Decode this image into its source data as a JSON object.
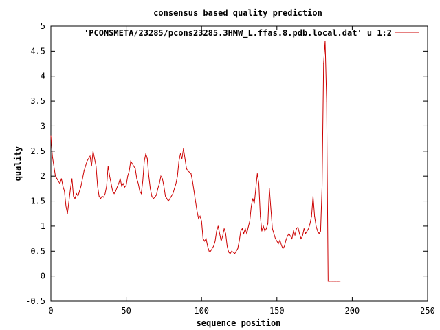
{
  "chart_data": {
    "type": "line",
    "title": "consensus based quality prediction",
    "xlabel": "sequence position",
    "ylabel": "quality",
    "xlim": [
      0,
      250
    ],
    "ylim": [
      -0.5,
      5
    ],
    "xticks": [
      0,
      50,
      100,
      150,
      200,
      250
    ],
    "yticks": [
      -0.5,
      0,
      0.5,
      1,
      1.5,
      2,
      2.5,
      3,
      3.5,
      4,
      4.5,
      5
    ],
    "ytick_labels": [
      "-0.5",
      "0",
      "0.5",
      "1",
      "1.5",
      "2",
      "2.5",
      "3",
      "3.5",
      "4",
      "4.5",
      "5"
    ],
    "grid": false,
    "legend_position": "top-right",
    "series": [
      {
        "name": "'PCONSMETA/23285/pcons23285.3HMW_L.ffas.8.pdb.local.dat' u 1:2",
        "color": "#cc0000",
        "points": [
          [
            0,
            2.8
          ],
          [
            1,
            2.4
          ],
          [
            2,
            2.2
          ],
          [
            3,
            2.0
          ],
          [
            4,
            1.95
          ],
          [
            5,
            1.9
          ],
          [
            6,
            1.85
          ],
          [
            7,
            1.95
          ],
          [
            8,
            1.8
          ],
          [
            9,
            1.7
          ],
          [
            10,
            1.4
          ],
          [
            11,
            1.25
          ],
          [
            12,
            1.5
          ],
          [
            13,
            1.75
          ],
          [
            14,
            1.95
          ],
          [
            15,
            1.6
          ],
          [
            16,
            1.55
          ],
          [
            17,
            1.65
          ],
          [
            18,
            1.6
          ],
          [
            19,
            1.7
          ],
          [
            20,
            1.8
          ],
          [
            21,
            1.95
          ],
          [
            22,
            2.1
          ],
          [
            23,
            2.2
          ],
          [
            24,
            2.3
          ],
          [
            25,
            2.35
          ],
          [
            26,
            2.4
          ],
          [
            27,
            2.2
          ],
          [
            28,
            2.5
          ],
          [
            29,
            2.35
          ],
          [
            30,
            2.2
          ],
          [
            31,
            1.8
          ],
          [
            32,
            1.6
          ],
          [
            33,
            1.55
          ],
          [
            34,
            1.6
          ],
          [
            35,
            1.58
          ],
          [
            36,
            1.65
          ],
          [
            37,
            1.8
          ],
          [
            38,
            2.2
          ],
          [
            39,
            2.0
          ],
          [
            40,
            1.85
          ],
          [
            41,
            1.7
          ],
          [
            42,
            1.65
          ],
          [
            43,
            1.7
          ],
          [
            44,
            1.78
          ],
          [
            45,
            1.85
          ],
          [
            46,
            1.95
          ],
          [
            47,
            1.8
          ],
          [
            48,
            1.85
          ],
          [
            49,
            1.78
          ],
          [
            50,
            1.82
          ],
          [
            51,
            2.0
          ],
          [
            52,
            2.1
          ],
          [
            53,
            2.3
          ],
          [
            54,
            2.25
          ],
          [
            55,
            2.2
          ],
          [
            56,
            2.15
          ],
          [
            57,
            1.95
          ],
          [
            58,
            1.85
          ],
          [
            59,
            1.7
          ],
          [
            60,
            1.65
          ],
          [
            61,
            1.9
          ],
          [
            62,
            2.3
          ],
          [
            63,
            2.45
          ],
          [
            64,
            2.35
          ],
          [
            65,
            2.0
          ],
          [
            66,
            1.75
          ],
          [
            67,
            1.6
          ],
          [
            68,
            1.55
          ],
          [
            69,
            1.58
          ],
          [
            70,
            1.62
          ],
          [
            71,
            1.75
          ],
          [
            72,
            1.85
          ],
          [
            73,
            2.0
          ],
          [
            74,
            1.95
          ],
          [
            75,
            1.8
          ],
          [
            76,
            1.6
          ],
          [
            77,
            1.55
          ],
          [
            78,
            1.5
          ],
          [
            79,
            1.55
          ],
          [
            80,
            1.6
          ],
          [
            81,
            1.65
          ],
          [
            82,
            1.75
          ],
          [
            83,
            1.85
          ],
          [
            84,
            2.0
          ],
          [
            85,
            2.3
          ],
          [
            86,
            2.45
          ],
          [
            87,
            2.35
          ],
          [
            88,
            2.55
          ],
          [
            89,
            2.35
          ],
          [
            90,
            2.15
          ],
          [
            91,
            2.1
          ],
          [
            92,
            2.08
          ],
          [
            93,
            2.05
          ],
          [
            94,
            1.9
          ],
          [
            95,
            1.7
          ],
          [
            96,
            1.5
          ],
          [
            97,
            1.3
          ],
          [
            98,
            1.15
          ],
          [
            99,
            1.2
          ],
          [
            100,
            1.1
          ],
          [
            101,
            0.75
          ],
          [
            102,
            0.7
          ],
          [
            103,
            0.75
          ],
          [
            104,
            0.6
          ],
          [
            105,
            0.5
          ],
          [
            106,
            0.5
          ],
          [
            107,
            0.55
          ],
          [
            108,
            0.6
          ],
          [
            109,
            0.7
          ],
          [
            110,
            0.9
          ],
          [
            111,
            1.0
          ],
          [
            112,
            0.85
          ],
          [
            113,
            0.7
          ],
          [
            114,
            0.8
          ],
          [
            115,
            0.95
          ],
          [
            116,
            0.85
          ],
          [
            117,
            0.6
          ],
          [
            118,
            0.48
          ],
          [
            119,
            0.45
          ],
          [
            120,
            0.5
          ],
          [
            121,
            0.48
          ],
          [
            122,
            0.45
          ],
          [
            123,
            0.5
          ],
          [
            124,
            0.55
          ],
          [
            125,
            0.7
          ],
          [
            126,
            0.9
          ],
          [
            127,
            0.95
          ],
          [
            128,
            0.85
          ],
          [
            129,
            0.95
          ],
          [
            130,
            0.85
          ],
          [
            131,
            0.98
          ],
          [
            132,
            1.1
          ],
          [
            133,
            1.4
          ],
          [
            134,
            1.55
          ],
          [
            135,
            1.45
          ],
          [
            136,
            1.75
          ],
          [
            137,
            2.05
          ],
          [
            138,
            1.85
          ],
          [
            139,
            1.2
          ],
          [
            140,
            0.9
          ],
          [
            141,
            1.0
          ],
          [
            142,
            0.9
          ],
          [
            143,
            0.95
          ],
          [
            144,
            1.05
          ],
          [
            145,
            1.75
          ],
          [
            146,
            1.35
          ],
          [
            147,
            0.95
          ],
          [
            148,
            0.85
          ],
          [
            149,
            0.75
          ],
          [
            150,
            0.7
          ],
          [
            151,
            0.65
          ],
          [
            152,
            0.72
          ],
          [
            153,
            0.62
          ],
          [
            154,
            0.55
          ],
          [
            155,
            0.6
          ],
          [
            156,
            0.72
          ],
          [
            157,
            0.8
          ],
          [
            158,
            0.85
          ],
          [
            159,
            0.8
          ],
          [
            160,
            0.75
          ],
          [
            161,
            0.9
          ],
          [
            162,
            0.82
          ],
          [
            163,
            0.95
          ],
          [
            164,
            0.98
          ],
          [
            165,
            0.85
          ],
          [
            166,
            0.75
          ],
          [
            167,
            0.8
          ],
          [
            168,
            0.95
          ],
          [
            169,
            0.85
          ],
          [
            170,
            0.9
          ],
          [
            171,
            0.95
          ],
          [
            172,
            1.05
          ],
          [
            173,
            1.2
          ],
          [
            174,
            1.6
          ],
          [
            175,
            1.2
          ],
          [
            176,
            1.0
          ],
          [
            177,
            0.9
          ],
          [
            178,
            0.85
          ],
          [
            179,
            0.9
          ],
          [
            180,
            1.8
          ],
          [
            181,
            4.25
          ],
          [
            182,
            4.7
          ],
          [
            183,
            3.5
          ],
          [
            184,
            -0.1
          ],
          [
            185,
            -0.1
          ],
          [
            186,
            -0.1
          ],
          [
            187,
            -0.1
          ],
          [
            188,
            -0.1
          ],
          [
            189,
            -0.1
          ],
          [
            190,
            -0.1
          ],
          [
            191,
            -0.1
          ],
          [
            192,
            -0.1
          ]
        ]
      }
    ]
  }
}
